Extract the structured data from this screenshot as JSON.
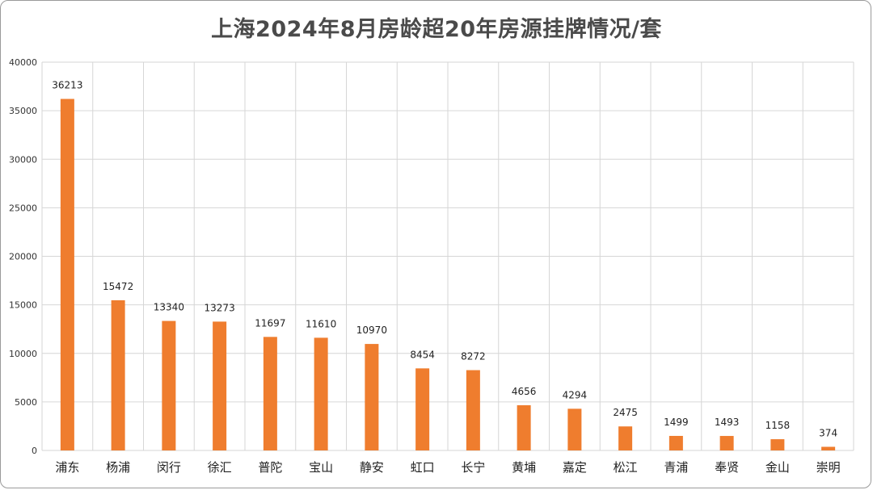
{
  "chart_data": {
    "type": "bar",
    "title": "上海2024年8月房龄超20年房源挂牌情况/套",
    "categories": [
      "浦东",
      "杨浦",
      "闵行",
      "徐汇",
      "普陀",
      "宝山",
      "静安",
      "虹口",
      "长宁",
      "黄埔",
      "嘉定",
      "松江",
      "青浦",
      "奉贤",
      "金山",
      "崇明"
    ],
    "values": [
      36213,
      15472,
      13340,
      13273,
      11697,
      11610,
      10970,
      8454,
      8272,
      4656,
      4294,
      2475,
      1499,
      1493,
      1158,
      374
    ],
    "ylim": [
      0,
      40000
    ],
    "yticks": [
      0,
      5000,
      10000,
      15000,
      20000,
      25000,
      30000,
      35000,
      40000
    ],
    "grid": true,
    "bar_color": "#ef7d2e",
    "grid_color": "#d6d6d6",
    "title_color": "#4a4a4a"
  }
}
